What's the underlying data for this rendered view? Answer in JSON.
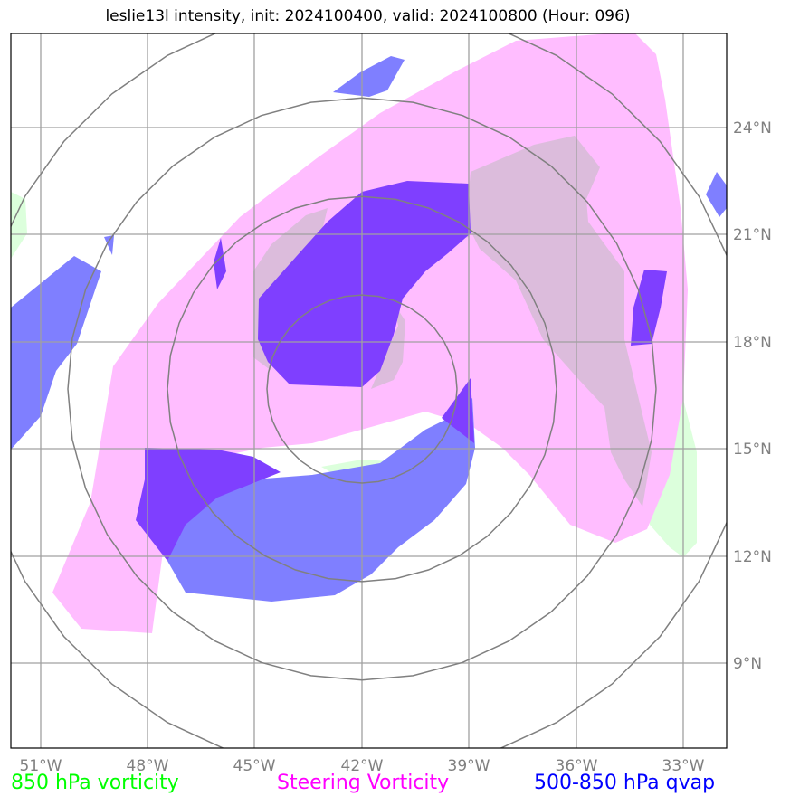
{
  "title": "leslie13l intensity, init: 2024100400, valid: 2024100800 (Hour: 096)",
  "map": {
    "lon_labels": [
      "51°W",
      "48°W",
      "45°W",
      "42°W",
      "39°W",
      "36°W",
      "33°W"
    ],
    "lat_labels": [
      "24°N",
      "21°N",
      "18°N",
      "15°N",
      "12°N",
      "9°N"
    ],
    "range_rings": 4
  },
  "legend": {
    "vort850": {
      "label": "850 hPa vorticity",
      "color": "#00ff00"
    },
    "steering": {
      "label": "Steering Vorticity",
      "color": "#ff00ff"
    },
    "qvap": {
      "label": "500-850 hPa qvap",
      "color": "#0000ff"
    }
  },
  "colors": {
    "steering_fill": "#ffbdff",
    "qvap_fill": "#7f7fff",
    "purple_fill": "#7f3fff",
    "overlap_fill": "#dcbcdc",
    "green_fill": "#dcffdc",
    "gridline": "#a0a0a0",
    "ring": "#808080"
  }
}
